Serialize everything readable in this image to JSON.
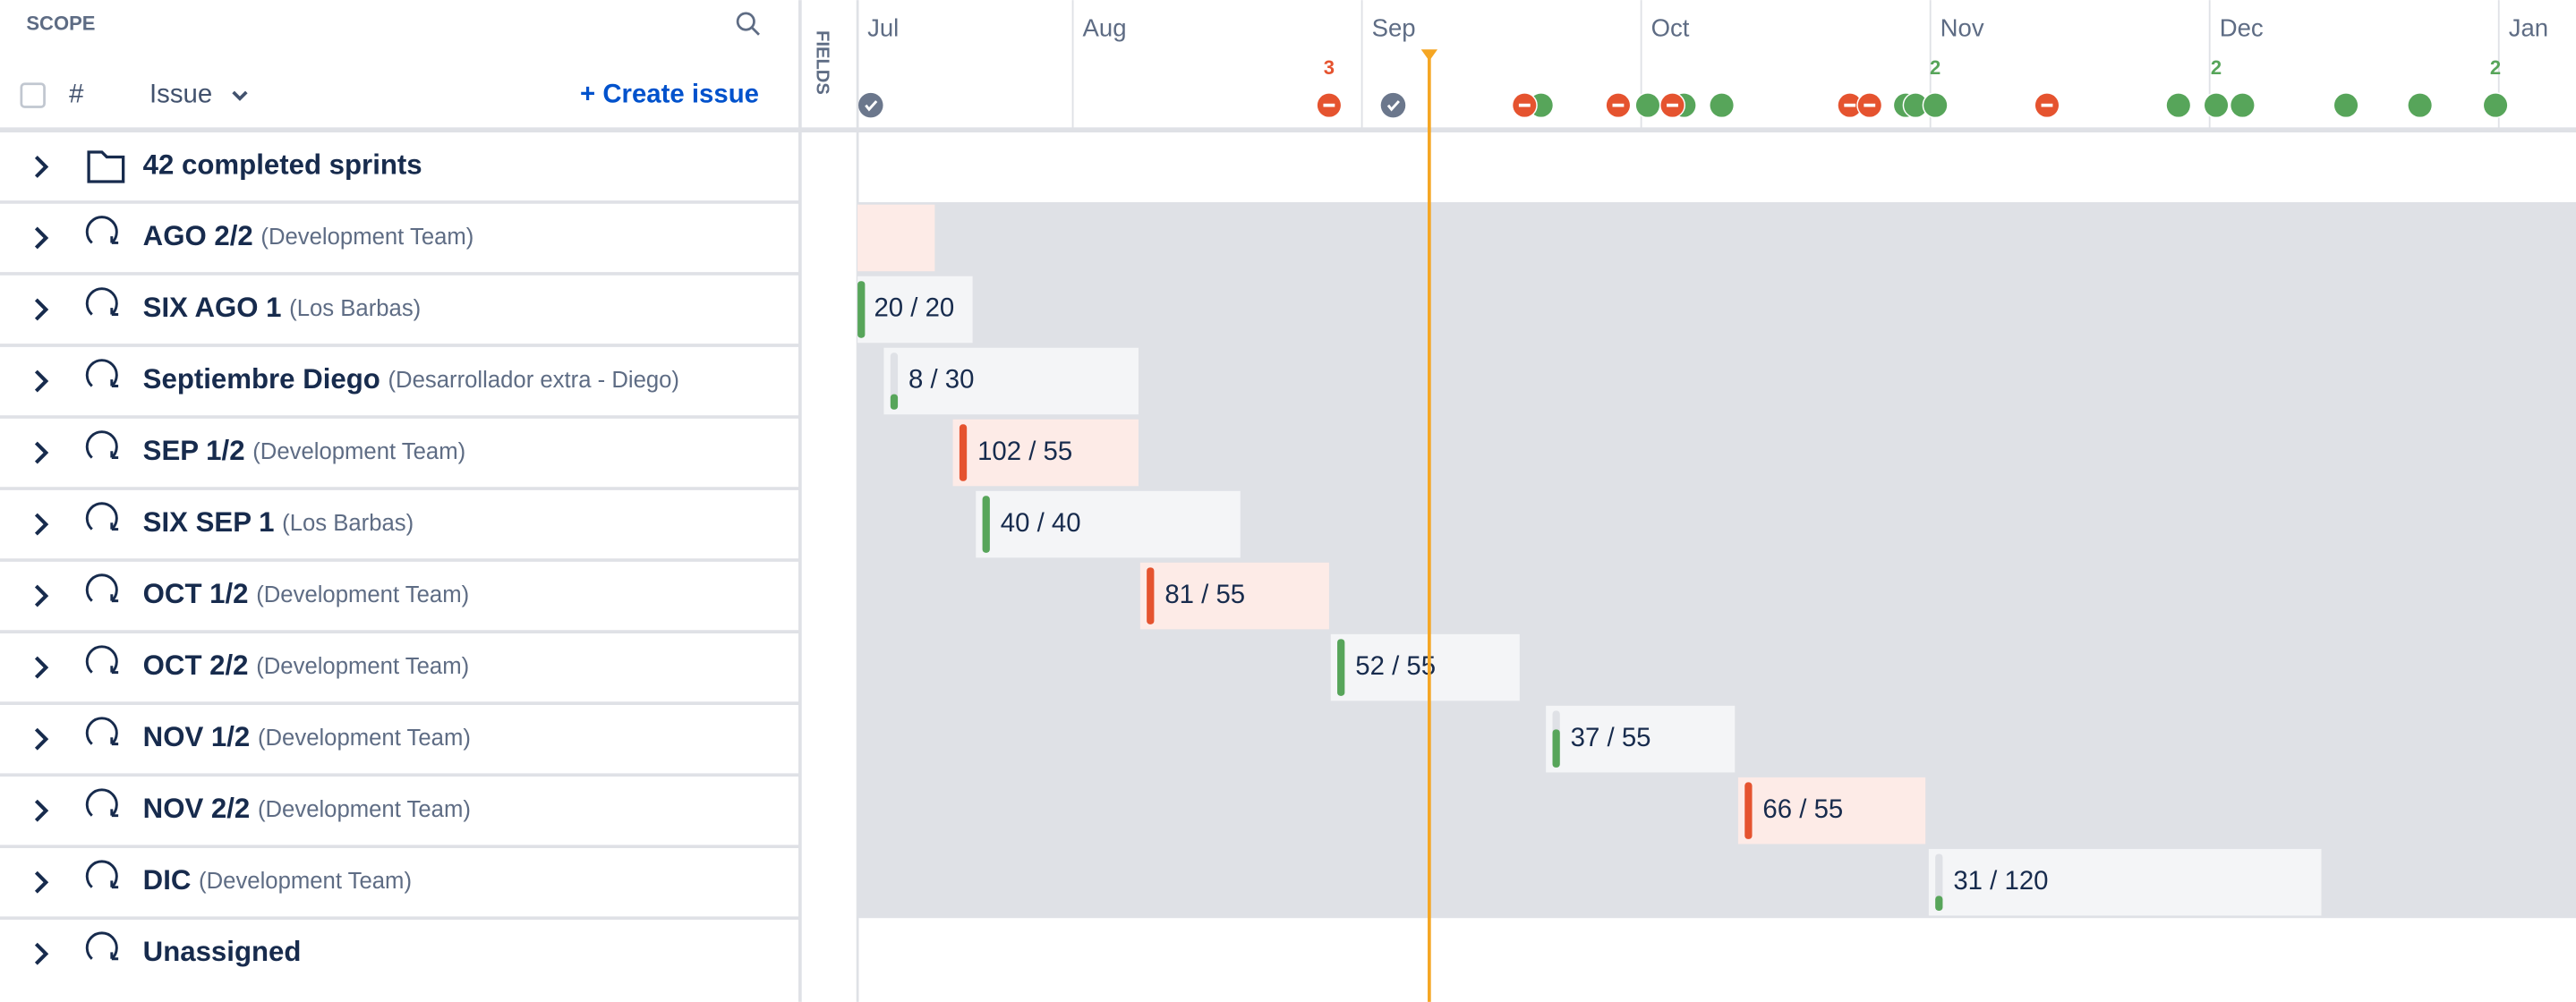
{
  "scope": {
    "title": "SCOPE"
  },
  "header": {
    "hash": "#",
    "issue": "Issue",
    "create": "+ Create issue",
    "fields": "FIELDS"
  },
  "months": [
    "Jul",
    "Aug",
    "Sep",
    "Oct",
    "Nov",
    "Dec",
    "Jan"
  ],
  "milestone_counts": [
    3,
    2,
    2,
    2
  ],
  "rows": [
    {
      "name": "42 completed sprints"
    },
    {
      "name": "AGO 2/2",
      "team": "(Development Team)"
    },
    {
      "name": "SIX AGO 1",
      "team": "(Los Barbas)",
      "progress": "20 / 20"
    },
    {
      "name": "Septiembre Diego",
      "team": "(Desarrollador extra - Diego)",
      "progress": "8 / 30"
    },
    {
      "name": "SEP 1/2",
      "team": "(Development Team)",
      "progress": "102 / 55"
    },
    {
      "name": "SIX SEP 1",
      "team": "(Los Barbas)",
      "progress": "40 / 40"
    },
    {
      "name": "OCT 1/2",
      "team": "(Development Team)",
      "progress": "81 / 55"
    },
    {
      "name": "OCT 2/2",
      "team": "(Development Team)",
      "progress": "52 / 55"
    },
    {
      "name": "NOV 1/2",
      "team": "(Development Team)",
      "progress": "37 / 55"
    },
    {
      "name": "NOV 2/2",
      "team": "(Development Team)",
      "progress": "66 / 55"
    },
    {
      "name": "DIC",
      "team": "(Development Team)",
      "progress": "31 / 120"
    },
    {
      "name": "Unassigned"
    }
  ]
}
